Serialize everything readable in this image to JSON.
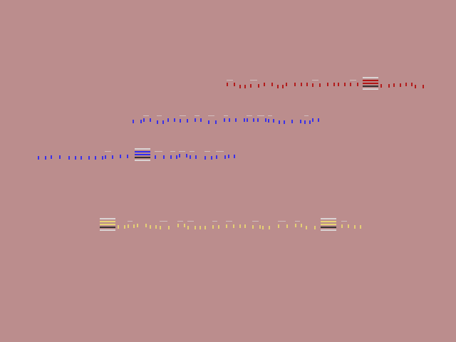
{
  "background": "#bb8d8d",
  "rows": [
    {
      "color": "#b00000",
      "accent": "#e0e0e0",
      "dark": "#202020"
    },
    {
      "color": "#1a1aff",
      "accent": "#e0e0e0",
      "dark": "#202020"
    },
    {
      "color": "#1a1aff",
      "accent": "#e0e0e0",
      "dark": "#202020"
    },
    {
      "color": "#f0e070",
      "accent": "#e0e0e0",
      "dark": "#202020"
    }
  ]
}
